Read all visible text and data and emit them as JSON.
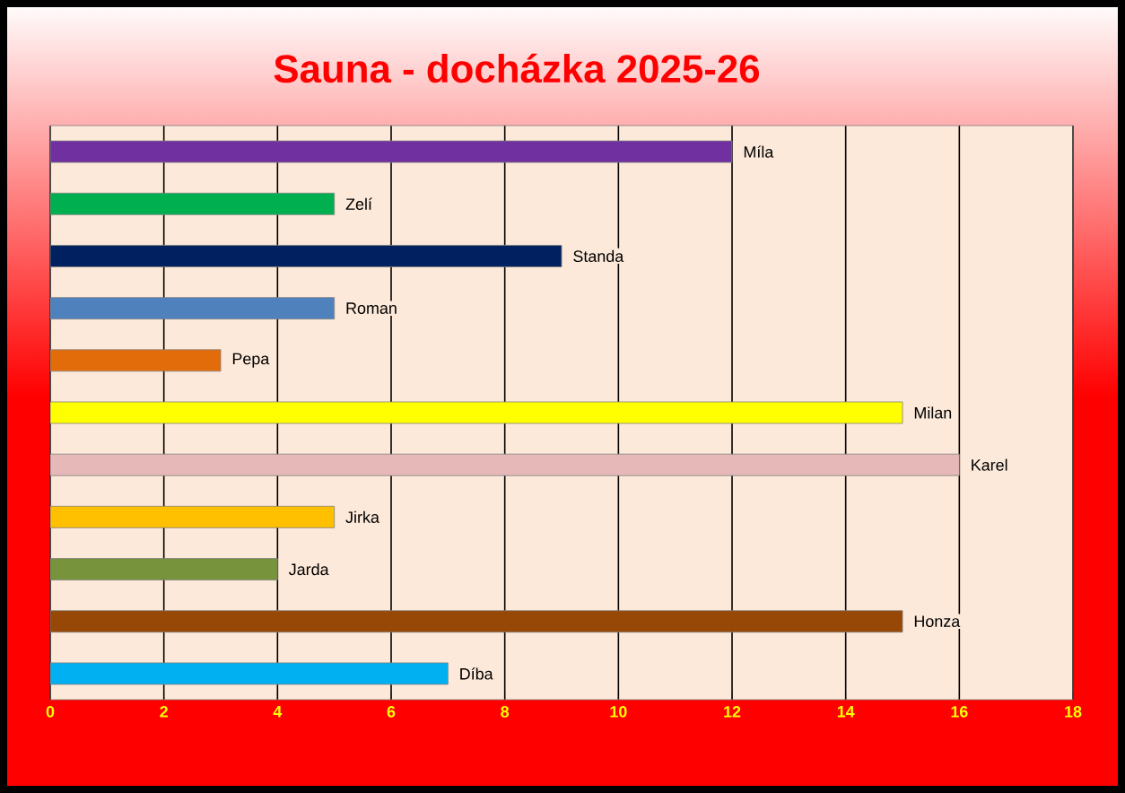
{
  "chart_data": {
    "type": "bar",
    "orientation": "horizontal",
    "title": "Sauna - docházka 2025-26",
    "categories": [
      "Míla",
      "Zelí",
      "Standa",
      "Roman",
      "Pepa",
      "Milan",
      "Karel",
      "Jirka",
      "Jarda",
      "Honza",
      "Díba"
    ],
    "values": [
      12,
      5,
      9,
      5,
      3,
      15,
      16,
      5,
      4,
      15,
      7
    ],
    "colors": [
      "#7030a0",
      "#00b050",
      "#002060",
      "#4f81bd",
      "#e26b0a",
      "#ffff00",
      "#e6b9b8",
      "#ffc000",
      "#77933c",
      "#974706",
      "#00b0f0"
    ],
    "xlim": [
      0,
      18
    ],
    "xticks": [
      0,
      2,
      4,
      6,
      8,
      10,
      12,
      14,
      16,
      18
    ],
    "grid": "x",
    "tick_labels": "x"
  }
}
